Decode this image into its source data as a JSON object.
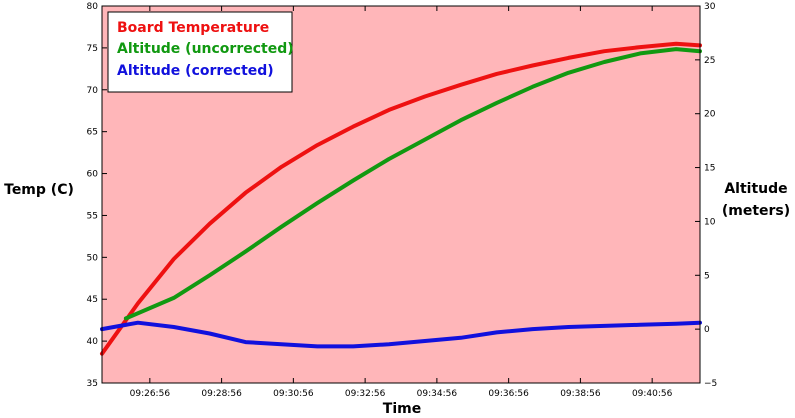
{
  "chart_data": {
    "type": "line",
    "title": "",
    "xlabel": "Time",
    "ylabel_left": "Temp (C)",
    "ylabel_right_lines": [
      "Altitude",
      "(meters)"
    ],
    "x_ticks": [
      "09:26:56",
      "09:28:56",
      "09:30:56",
      "09:32:56",
      "09:34:56",
      "09:36:56",
      "09:38:56",
      "09:40:56"
    ],
    "xlim": [
      "09:25:36",
      "09:42:16"
    ],
    "ylim_left": [
      35,
      80
    ],
    "y_ticks_left": [
      35,
      40,
      45,
      50,
      55,
      60,
      65,
      70,
      75,
      80
    ],
    "ylim_right": [
      -5,
      30
    ],
    "y_ticks_right": [
      -5,
      0,
      5,
      10,
      15,
      20,
      25,
      30
    ],
    "grid": false,
    "legend_position": "top-left",
    "background_color": "#ffb6b9",
    "series": [
      {
        "name": "Board Temperature",
        "axis": "left",
        "color": "#ee1111",
        "x": [
          "09:25:36",
          "09:26:36",
          "09:27:36",
          "09:28:36",
          "09:29:36",
          "09:30:36",
          "09:31:36",
          "09:32:36",
          "09:33:36",
          "09:34:36",
          "09:35:36",
          "09:36:36",
          "09:37:36",
          "09:38:36",
          "09:39:36",
          "09:40:36",
          "09:41:36",
          "09:42:16"
        ],
        "values": [
          38.5,
          44.5,
          49.8,
          54.0,
          57.7,
          60.8,
          63.4,
          65.6,
          67.6,
          69.2,
          70.6,
          71.9,
          72.9,
          73.8,
          74.6,
          75.1,
          75.5,
          75.3
        ]
      },
      {
        "name": "Altitude (uncorrected)",
        "axis": "right",
        "color": "#119911",
        "x": [
          "09:26:16",
          "09:27:36",
          "09:28:36",
          "09:29:36",
          "09:30:36",
          "09:31:36",
          "09:32:36",
          "09:33:36",
          "09:34:36",
          "09:35:36",
          "09:36:36",
          "09:37:36",
          "09:38:36",
          "09:39:36",
          "09:40:36",
          "09:41:36",
          "09:42:16"
        ],
        "values": [
          1.0,
          2.9,
          5.0,
          7.2,
          9.5,
          11.7,
          13.8,
          15.8,
          17.6,
          19.4,
          21.0,
          22.5,
          23.8,
          24.8,
          25.6,
          26.0,
          25.8
        ]
      },
      {
        "name": "Altitude (corrected)",
        "axis": "right",
        "color": "#1111dd",
        "x": [
          "09:25:36",
          "09:26:36",
          "09:27:36",
          "09:28:36",
          "09:29:36",
          "09:30:36",
          "09:31:36",
          "09:32:36",
          "09:33:36",
          "09:34:36",
          "09:35:36",
          "09:36:36",
          "09:37:36",
          "09:38:36",
          "09:39:36",
          "09:40:36",
          "09:41:36",
          "09:42:16"
        ],
        "values": [
          0.0,
          0.6,
          0.2,
          -0.4,
          -1.2,
          -1.4,
          -1.6,
          -1.6,
          -1.4,
          -1.1,
          -0.8,
          -0.3,
          0.0,
          0.2,
          0.3,
          0.4,
          0.5,
          0.6
        ]
      }
    ]
  }
}
